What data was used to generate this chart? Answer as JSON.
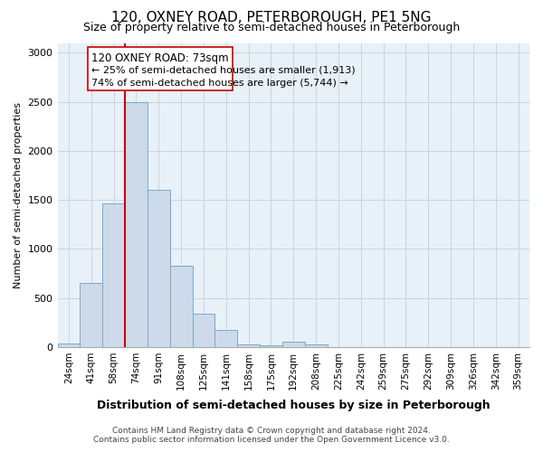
{
  "title": "120, OXNEY ROAD, PETERBOROUGH, PE1 5NG",
  "subtitle": "Size of property relative to semi-detached houses in Peterborough",
  "xlabel": "Distribution of semi-detached houses by size in Peterborough",
  "ylabel": "Number of semi-detached properties",
  "footer_line1": "Contains HM Land Registry data © Crown copyright and database right 2024.",
  "footer_line2": "Contains public sector information licensed under the Open Government Licence v3.0.",
  "bin_labels": [
    "24sqm",
    "41sqm",
    "58sqm",
    "74sqm",
    "91sqm",
    "108sqm",
    "125sqm",
    "141sqm",
    "158sqm",
    "175sqm",
    "192sqm",
    "208sqm",
    "225sqm",
    "242sqm",
    "259sqm",
    "275sqm",
    "292sqm",
    "309sqm",
    "326sqm",
    "342sqm",
    "359sqm"
  ],
  "bar_values": [
    35,
    650,
    1460,
    2500,
    1600,
    830,
    340,
    170,
    30,
    20,
    55,
    25,
    0,
    0,
    0,
    0,
    0,
    0,
    0,
    0,
    0
  ],
  "bar_color": "#ccdaea",
  "bar_edge_color": "#7aaac8",
  "plot_bg_color": "#e8f0f8",
  "ylim": [
    0,
    3100
  ],
  "yticks": [
    0,
    500,
    1000,
    1500,
    2000,
    2500,
    3000
  ],
  "property_label": "120 OXNEY ROAD: 73sqm",
  "vline_x_index": 3,
  "vline_color": "#cc0000",
  "annotation_smaller_pct": "25%",
  "annotation_smaller_n": "1,913",
  "annotation_larger_pct": "74%",
  "annotation_larger_n": "5,744",
  "background_color": "#ffffff",
  "grid_color": "#c8d4e0"
}
